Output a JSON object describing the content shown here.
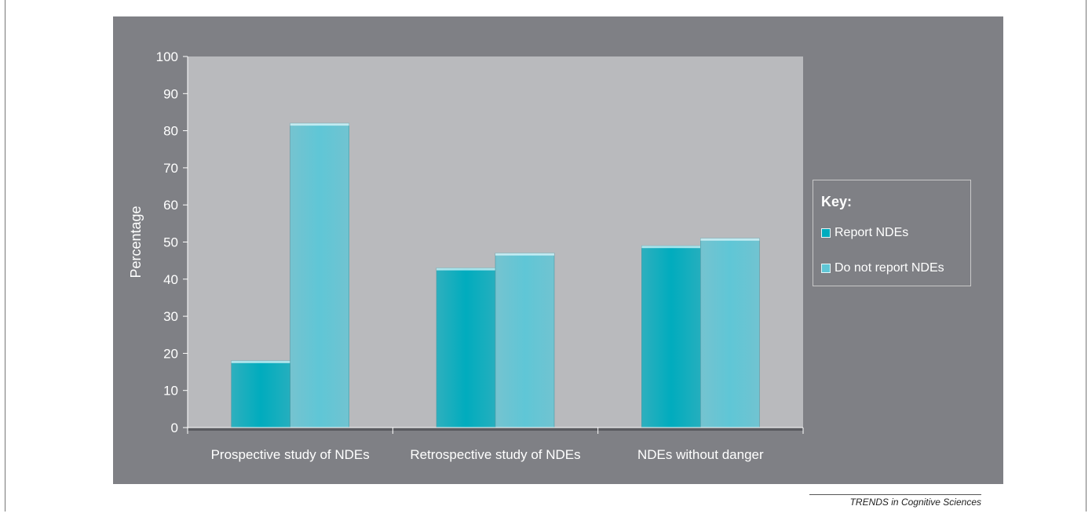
{
  "chart_data": {
    "type": "bar",
    "title": "",
    "xlabel": "",
    "ylabel": "Percentage",
    "ylim": [
      0,
      100
    ],
    "yticks": [
      0,
      10,
      20,
      30,
      40,
      50,
      60,
      70,
      80,
      90,
      100
    ],
    "categories": [
      "Prospective study of NDEs",
      "Retrospective study of NDEs",
      "NDEs without danger"
    ],
    "series": [
      {
        "name": "Report NDEs",
        "values": [
          18,
          43,
          49
        ],
        "color": "#00acbe"
      },
      {
        "name": "Do not report NDEs",
        "values": [
          82,
          47,
          51
        ],
        "color": "#5fc6d6"
      }
    ],
    "legend_title": "Key:",
    "legend_position": "right",
    "grid": false
  },
  "colors": {
    "panel_bg": "#7f8085",
    "plot_bg": "#b9babd",
    "text": "#ffffff"
  },
  "footer": {
    "credit": "TRENDS in Cognitive Sciences"
  }
}
